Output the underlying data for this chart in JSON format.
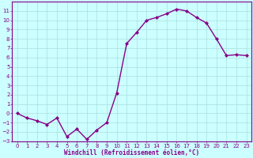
{
  "x": [
    0,
    1,
    2,
    3,
    4,
    5,
    6,
    7,
    8,
    9,
    10,
    11,
    12,
    13,
    14,
    15,
    16,
    17,
    18,
    19,
    20,
    21,
    22,
    23
  ],
  "y": [
    0,
    -0.5,
    -0.8,
    -1.2,
    -0.5,
    -2.5,
    -1.7,
    -2.8,
    -1.8,
    -1.0,
    2.2,
    7.5,
    8.7,
    10.0,
    10.3,
    10.7,
    11.2,
    11.0,
    10.3,
    9.7,
    8.0,
    6.2,
    6.3,
    6.2
  ],
  "line_color": "#880088",
  "marker": "D",
  "marker_size": 2.0,
  "bg_color": "#ccffff",
  "grid_color": "#aadddd",
  "xlabel": "Windchill (Refroidissement éolien,°C)",
  "xlabel_color": "#880088",
  "tick_color": "#880088",
  "spine_color": "#880088",
  "ylim": [
    -3,
    12
  ],
  "xlim": [
    -0.5,
    23.5
  ],
  "yticks": [
    -3,
    -2,
    -1,
    0,
    1,
    2,
    3,
    4,
    5,
    6,
    7,
    8,
    9,
    10,
    11
  ],
  "xticks": [
    0,
    1,
    2,
    3,
    4,
    5,
    6,
    7,
    8,
    9,
    10,
    11,
    12,
    13,
    14,
    15,
    16,
    17,
    18,
    19,
    20,
    21,
    22,
    23
  ],
  "tick_fontsize": 5.0,
  "xlabel_fontsize": 5.5,
  "linewidth": 1.0
}
